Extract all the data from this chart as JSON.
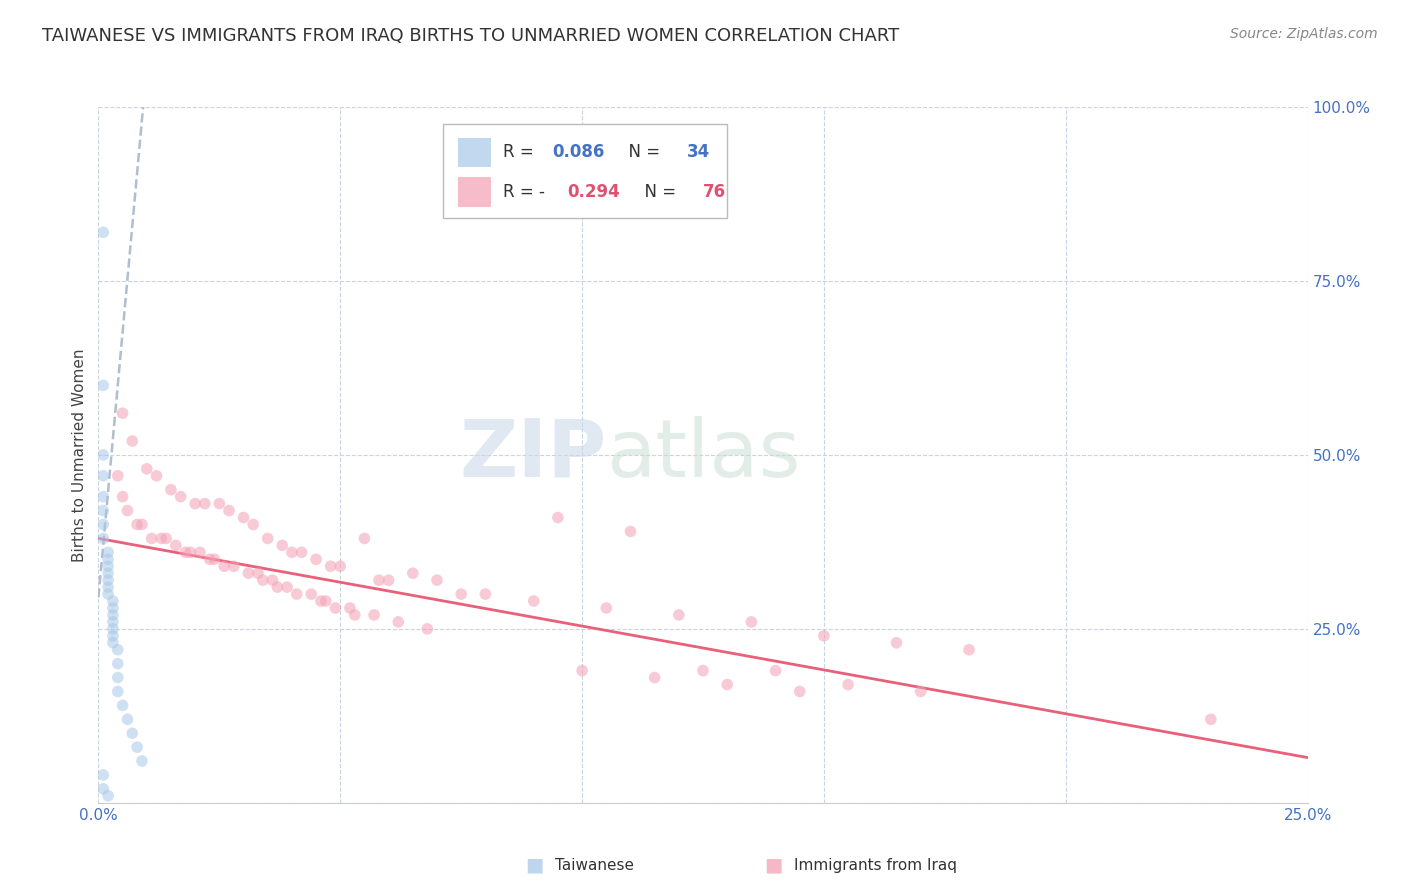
{
  "title": "TAIWANESE VS IMMIGRANTS FROM IRAQ BIRTHS TO UNMARRIED WOMEN CORRELATION CHART",
  "source": "Source: ZipAtlas.com",
  "ylabel": "Births to Unmarried Women",
  "watermark_zip": "ZIP",
  "watermark_atlas": "atlas",
  "legend_blue_r": "R =",
  "legend_blue_val": "0.086",
  "legend_blue_n": "N =",
  "legend_blue_nval": "34",
  "legend_pink_r": "R = -",
  "legend_pink_val": "0.294",
  "legend_pink_n": "N =",
  "legend_pink_nval": "76",
  "legend_labels": [
    "Taiwanese",
    "Immigrants from Iraq"
  ],
  "blue_color": "#a8c8e8",
  "pink_color": "#f4a0b4",
  "blue_line_color": "#b0bece",
  "pink_line_color": "#e8607a",
  "value_color": "#4472c4",
  "pink_value_color": "#e05070",
  "taiwanese_x": [
    0.001,
    0.001,
    0.001,
    0.001,
    0.001,
    0.001,
    0.001,
    0.001,
    0.002,
    0.002,
    0.002,
    0.002,
    0.002,
    0.002,
    0.002,
    0.003,
    0.003,
    0.003,
    0.003,
    0.003,
    0.003,
    0.003,
    0.004,
    0.004,
    0.004,
    0.004,
    0.005,
    0.006,
    0.007,
    0.008,
    0.009,
    0.001,
    0.001,
    0.002
  ],
  "taiwanese_y": [
    0.82,
    0.6,
    0.5,
    0.47,
    0.44,
    0.42,
    0.4,
    0.38,
    0.36,
    0.35,
    0.34,
    0.33,
    0.32,
    0.31,
    0.3,
    0.29,
    0.28,
    0.27,
    0.26,
    0.25,
    0.24,
    0.23,
    0.22,
    0.2,
    0.18,
    0.16,
    0.14,
    0.12,
    0.1,
    0.08,
    0.06,
    0.04,
    0.02,
    0.01
  ],
  "iraq_x": [
    0.005,
    0.007,
    0.01,
    0.012,
    0.015,
    0.017,
    0.02,
    0.022,
    0.025,
    0.027,
    0.03,
    0.032,
    0.035,
    0.038,
    0.04,
    0.042,
    0.045,
    0.048,
    0.05,
    0.055,
    0.058,
    0.06,
    0.065,
    0.07,
    0.075,
    0.08,
    0.005,
    0.008,
    0.011,
    0.014,
    0.018,
    0.021,
    0.024,
    0.028,
    0.033,
    0.036,
    0.039,
    0.044,
    0.047,
    0.052,
    0.057,
    0.062,
    0.068,
    0.004,
    0.006,
    0.009,
    0.013,
    0.016,
    0.019,
    0.023,
    0.026,
    0.031,
    0.034,
    0.037,
    0.041,
    0.046,
    0.049,
    0.053,
    0.09,
    0.105,
    0.12,
    0.135,
    0.15,
    0.165,
    0.18,
    0.095,
    0.11,
    0.125,
    0.14,
    0.155,
    0.17,
    0.1,
    0.115,
    0.13,
    0.145,
    0.23
  ],
  "iraq_y": [
    0.56,
    0.52,
    0.48,
    0.47,
    0.45,
    0.44,
    0.43,
    0.43,
    0.43,
    0.42,
    0.41,
    0.4,
    0.38,
    0.37,
    0.36,
    0.36,
    0.35,
    0.34,
    0.34,
    0.38,
    0.32,
    0.32,
    0.33,
    0.32,
    0.3,
    0.3,
    0.44,
    0.4,
    0.38,
    0.38,
    0.36,
    0.36,
    0.35,
    0.34,
    0.33,
    0.32,
    0.31,
    0.3,
    0.29,
    0.28,
    0.27,
    0.26,
    0.25,
    0.47,
    0.42,
    0.4,
    0.38,
    0.37,
    0.36,
    0.35,
    0.34,
    0.33,
    0.32,
    0.31,
    0.3,
    0.29,
    0.28,
    0.27,
    0.29,
    0.28,
    0.27,
    0.26,
    0.24,
    0.23,
    0.22,
    0.41,
    0.39,
    0.19,
    0.19,
    0.17,
    0.16,
    0.19,
    0.18,
    0.17,
    0.16,
    0.12
  ],
  "xlim": [
    0.0,
    0.25
  ],
  "ylim": [
    0.0,
    1.0
  ],
  "xgrid_lines": [
    0.0,
    0.05,
    0.1,
    0.15,
    0.2,
    0.25
  ],
  "ygrid_lines": [
    0.0,
    0.25,
    0.5,
    0.75,
    1.0
  ],
  "blue_trend_x": [
    0.0,
    0.0095
  ],
  "blue_trend_y": [
    0.295,
    1.02
  ],
  "pink_trend_x": [
    0.0,
    0.25
  ],
  "pink_trend_y": [
    0.38,
    0.065
  ],
  "title_fontsize": 13,
  "source_fontsize": 10,
  "axis_label_fontsize": 11,
  "tick_label_fontsize": 11,
  "marker_size": 70,
  "marker_alpha": 0.55,
  "background_color": "#ffffff",
  "grid_color": "#c8d4e4",
  "right_axis_color": "#4472c4",
  "bottom_axis_color": "#4472c4"
}
